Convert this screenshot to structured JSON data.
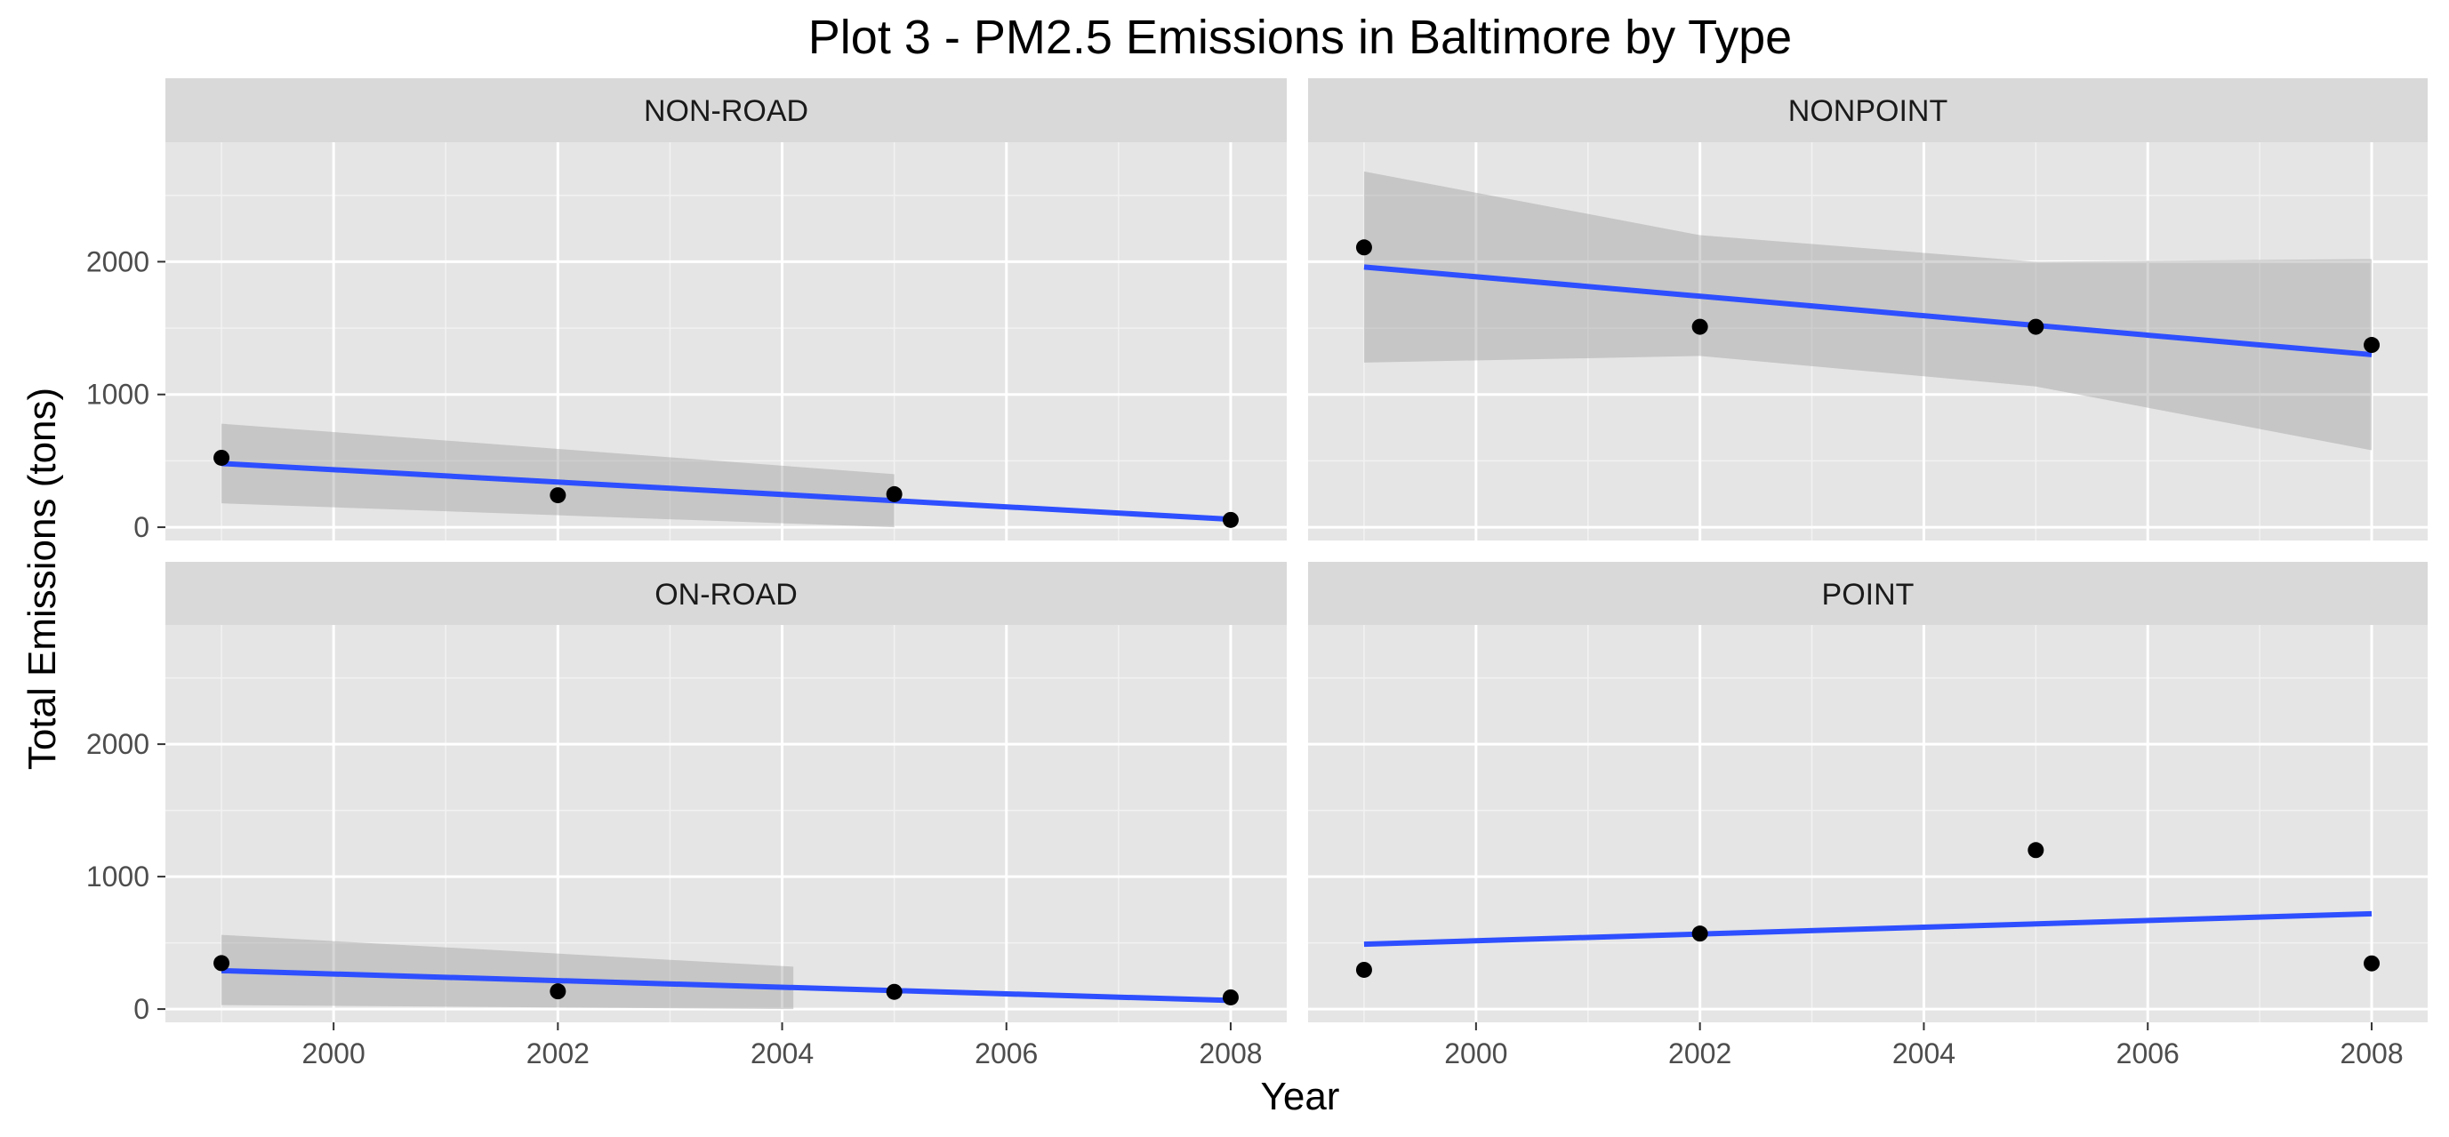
{
  "chart_data": {
    "type": "scatter",
    "title": "Plot 3 - PM2.5 Emissions in Baltimore by Type",
    "xlabel": "Year",
    "ylabel": "Total Emissions (tons)",
    "xlim": [
      1998.5,
      2008.5
    ],
    "ylim": [
      -100,
      2900
    ],
    "x_ticks": [
      2000,
      2002,
      2004,
      2006,
      2008
    ],
    "y_ticks": [
      0,
      1000,
      2000
    ],
    "grid": true,
    "panel_background": "#e5e5e5",
    "strip_background": "#d9d9d9",
    "point_color": "#000000",
    "trend_color": "#2e4fff",
    "band_color": "#999999",
    "panels": [
      {
        "name": "NON-ROAD",
        "points": [
          {
            "x": 1999,
            "y": 523
          },
          {
            "x": 2002,
            "y": 241
          },
          {
            "x": 2005,
            "y": 249
          },
          {
            "x": 2008,
            "y": 55
          }
        ],
        "trend": [
          {
            "x": 1999,
            "y": 480
          },
          {
            "x": 2008,
            "y": 60
          }
        ],
        "band": [
          {
            "x": 1999,
            "upper": 780,
            "lower": 180
          },
          {
            "x": 2005,
            "upper": 400,
            "lower": 0
          }
        ]
      },
      {
        "name": "NONPOINT",
        "points": [
          {
            "x": 1999,
            "y": 2108
          },
          {
            "x": 2002,
            "y": 1510
          },
          {
            "x": 2005,
            "y": 1510
          },
          {
            "x": 2008,
            "y": 1373
          }
        ],
        "trend": [
          {
            "x": 1999,
            "y": 1960
          },
          {
            "x": 2008,
            "y": 1300
          }
        ],
        "band": [
          {
            "x": 1999,
            "upper": 2680,
            "lower": 1240
          },
          {
            "x": 2002,
            "upper": 2200,
            "lower": 1290
          },
          {
            "x": 2005,
            "upper": 2000,
            "lower": 1060
          },
          {
            "x": 2008,
            "upper": 2020,
            "lower": 580
          }
        ]
      },
      {
        "name": "ON-ROAD",
        "points": [
          {
            "x": 1999,
            "y": 347
          },
          {
            "x": 2002,
            "y": 134
          },
          {
            "x": 2005,
            "y": 130
          },
          {
            "x": 2008,
            "y": 88
          }
        ],
        "trend": [
          {
            "x": 1999,
            "y": 290
          },
          {
            "x": 2008,
            "y": 65
          }
        ],
        "band": [
          {
            "x": 1999,
            "upper": 560,
            "lower": 30
          },
          {
            "x": 2004.1,
            "upper": 320,
            "lower": 0
          }
        ]
      },
      {
        "name": "POINT",
        "points": [
          {
            "x": 1999,
            "y": 296
          },
          {
            "x": 2002,
            "y": 570
          },
          {
            "x": 2005,
            "y": 1200
          },
          {
            "x": 2008,
            "y": 345
          }
        ],
        "trend": [
          {
            "x": 1999,
            "y": 490
          },
          {
            "x": 2008,
            "y": 720
          }
        ],
        "band": []
      }
    ]
  }
}
